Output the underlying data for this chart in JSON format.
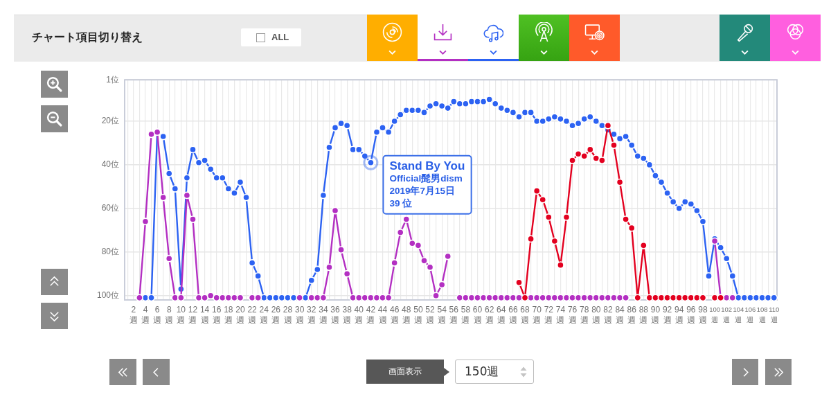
{
  "chart_data": {
    "type": "line",
    "categories": [
      null,
      "2週",
      null,
      "4週",
      null,
      "6週",
      null,
      "8週",
      null,
      "10週",
      null,
      "12週",
      null,
      "14週",
      null,
      "16週",
      null,
      "18週",
      null,
      "20週",
      null,
      "22週",
      null,
      "24週",
      null,
      "26週",
      null,
      "28週",
      null,
      "30週",
      null,
      "32週",
      null,
      "34週",
      null,
      "36週",
      null,
      "38週",
      null,
      "40週",
      null,
      "42週",
      null,
      "44週",
      null,
      "46週",
      null,
      "48週",
      null,
      "50週",
      null,
      "52週",
      null,
      "54週",
      null,
      "56週",
      null,
      "58週",
      null,
      "60週",
      null,
      "62週",
      null,
      "64週",
      null,
      "66週",
      null,
      "68週",
      null,
      "70週",
      null,
      "72週",
      null,
      "74週",
      null,
      "76週",
      null,
      "78週",
      null,
      "80週",
      null,
      "82週",
      null,
      "84週",
      null,
      "86週",
      null,
      "88週",
      null,
      "90週",
      null,
      "92週",
      null,
      "94週",
      null,
      "96週",
      null,
      "98週",
      null,
      "100週",
      null,
      "102週",
      null,
      "104週",
      null,
      "106週",
      null,
      "108週",
      null,
      "110週"
    ],
    "series": [
      {
        "color": "#2c62f2",
        "values": [
          null,
          null,
          null,
          101,
          101,
          25,
          27,
          44,
          51,
          97,
          46,
          33,
          39,
          38,
          42,
          46,
          46,
          51,
          53,
          48,
          55,
          85,
          91,
          101,
          101,
          101,
          101,
          101,
          101,
          null,
          101,
          93,
          88,
          54,
          32,
          23,
          21,
          22,
          33,
          33,
          36,
          39,
          25,
          23,
          25,
          20,
          17,
          15,
          15,
          15,
          16,
          13,
          12,
          13,
          14,
          11,
          12,
          12,
          11,
          11,
          11,
          10,
          12,
          14,
          15,
          16,
          18,
          16,
          16,
          20,
          20,
          19,
          18,
          19,
          20,
          22,
          21,
          19,
          18,
          20,
          22,
          24,
          26,
          28,
          27,
          31,
          36,
          37,
          40,
          45,
          48,
          53,
          57,
          60,
          57,
          58,
          61,
          66,
          91,
          74,
          78,
          83,
          91,
          101,
          101,
          101,
          101,
          101,
          101,
          101
        ]
      },
      {
        "color": "#b32fc2",
        "values": [
          null,
          null,
          101,
          66,
          26,
          25,
          55,
          83,
          101,
          101,
          54,
          65,
          101,
          101,
          100,
          101,
          101,
          101,
          101,
          101,
          null,
          101,
          101,
          null,
          null,
          null,
          null,
          null,
          null,
          101,
          null,
          101,
          101,
          101,
          87,
          61,
          79,
          90,
          101,
          101,
          101,
          101,
          101,
          101,
          101,
          85,
          71,
          65,
          76,
          77,
          84,
          87,
          100,
          95,
          82,
          null,
          101,
          101,
          101,
          101,
          101,
          101,
          101,
          101,
          101,
          101,
          101,
          null,
          101,
          101,
          101,
          101,
          101,
          101,
          101,
          101,
          101,
          101,
          101,
          101,
          101,
          101,
          101,
          101,
          101,
          null,
          null,
          null,
          null,
          null,
          null,
          null,
          null,
          null,
          null,
          null,
          null,
          null,
          null,
          75,
          101,
          101,
          101,
          null,
          null,
          null,
          null,
          null,
          null,
          null
        ]
      },
      {
        "color": "#e3001f",
        "values": [
          null,
          null,
          null,
          null,
          null,
          null,
          null,
          null,
          null,
          null,
          null,
          null,
          null,
          null,
          null,
          null,
          null,
          null,
          null,
          null,
          null,
          null,
          null,
          null,
          null,
          null,
          null,
          null,
          null,
          null,
          null,
          null,
          null,
          null,
          null,
          null,
          null,
          null,
          null,
          null,
          null,
          null,
          null,
          null,
          null,
          null,
          null,
          null,
          null,
          null,
          null,
          null,
          null,
          null,
          null,
          null,
          null,
          null,
          null,
          null,
          null,
          null,
          null,
          null,
          null,
          null,
          94,
          101,
          74,
          52,
          56,
          64,
          75,
          86,
          64,
          38,
          35,
          36,
          33,
          37,
          38,
          22,
          31,
          48,
          65,
          69,
          101,
          77,
          101,
          101,
          101,
          101,
          101,
          101,
          101,
          101,
          101,
          101,
          null,
          101,
          101,
          null,
          null,
          null,
          null,
          null,
          null,
          null,
          null,
          null
        ]
      }
    ],
    "ylim": [
      102,
      1
    ],
    "yticks": [
      {
        "value": 1,
        "label": "1位"
      },
      {
        "value": 20,
        "label": "20位"
      },
      {
        "value": 40,
        "label": "40位"
      },
      {
        "value": 60,
        "label": "60位"
      },
      {
        "value": 80,
        "label": "80位"
      },
      {
        "value": 100,
        "label": "100位"
      }
    ],
    "grid": true,
    "marker": "circle",
    "line_style": "solid",
    "annotations": [
      "チャート項目切り替え",
      "ALL",
      "画面表示",
      "150週",
      {
        "text": "Stand By You\nOfficial髭男dism\n2019年7月15日\n39 位",
        "x": "42週",
        "y": 39
      }
    ]
  }
}
